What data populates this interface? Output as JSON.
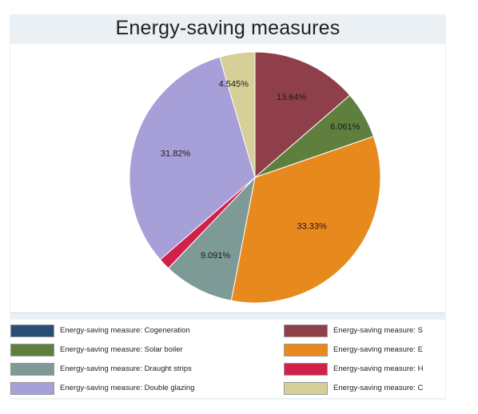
{
  "chart_data": {
    "type": "pie",
    "title": "Energy-saving measures",
    "slices": [
      {
        "name": "Energy-saving measure: S",
        "value": 13.64,
        "label": "13.64%",
        "color": "#8f3f4a"
      },
      {
        "name": "Energy-saving measure: Solar boiler",
        "value": 6.061,
        "label": "6.061%",
        "color": "#5e7f3e"
      },
      {
        "name": "Energy-saving measure: E",
        "value": 33.33,
        "label": "33.33%",
        "color": "#e8891e"
      },
      {
        "name": "Energy-saving measure: Draught strips",
        "value": 9.091,
        "label": "9.091%",
        "color": "#7e9a96"
      },
      {
        "name": "Energy-saving measure: H",
        "value": 1.515,
        "label": "1.515%",
        "color": "#d0214a"
      },
      {
        "name": "Energy-saving measure: Double glazing",
        "value": 31.82,
        "label": "31.82%",
        "color": "#a79fd8"
      },
      {
        "name": "Energy-saving measure: C",
        "value": 4.545,
        "label": "4.545%",
        "color": "#d6cf97"
      }
    ],
    "legend": [
      {
        "label": "Energy-saving measure: Cogeneration",
        "color": "#2a4d78"
      },
      {
        "label": "Energy-saving measure: S",
        "color": "#8f3f4a"
      },
      {
        "label": "Energy-saving measure: Solar boiler",
        "color": "#5e7f3e"
      },
      {
        "label": "Energy-saving measure: E",
        "color": "#e8891e"
      },
      {
        "label": "Energy-saving measure: Draught strips",
        "color": "#7e9a96"
      },
      {
        "label": "Energy-saving measure: H",
        "color": "#d0214a"
      },
      {
        "label": "Energy-saving measure: Double glazing",
        "color": "#a79fd8"
      },
      {
        "label": "Energy-saving measure: C",
        "color": "#d6cf97"
      }
    ],
    "legend_placement": "bottom",
    "start": "12 o'clock, clockwise"
  }
}
